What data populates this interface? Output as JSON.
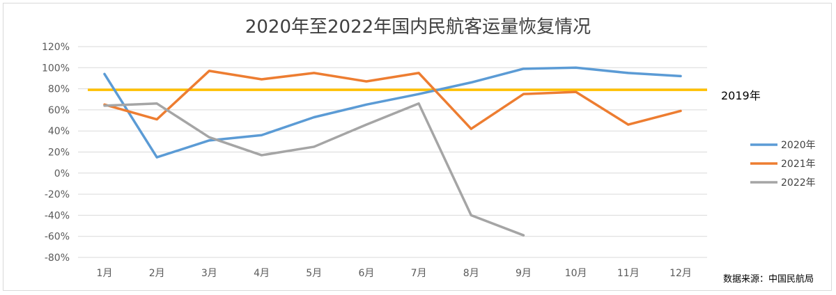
{
  "chart_data": {
    "type": "line",
    "title": "2020年至2022年国内民航客运量恢复情况",
    "categories": [
      "1月",
      "2月",
      "3月",
      "4月",
      "5月",
      "6月",
      "7月",
      "8月",
      "9月",
      "10月",
      "11月",
      "12月"
    ],
    "y_ticks": [
      "120%",
      "100%",
      "80%",
      "60%",
      "40%",
      "20%",
      "0%",
      "-20%",
      "-40%",
      "-60%",
      "-80%"
    ],
    "ylim": [
      -80,
      120
    ],
    "y_unit": "%",
    "grid": true,
    "legend_position": "right",
    "series": [
      {
        "name": "2020年",
        "color": "#5b9bd5",
        "values": [
          94,
          15,
          31,
          36,
          53,
          65,
          75,
          86,
          99,
          100,
          95,
          92
        ]
      },
      {
        "name": "2021年",
        "color": "#ed7d31",
        "values": [
          65,
          51,
          97,
          89,
          95,
          87,
          95,
          42,
          75,
          77,
          46,
          59
        ]
      },
      {
        "name": "2022年",
        "color": "#a5a5a5",
        "values": [
          64,
          66,
          34,
          17,
          25,
          46,
          66,
          -40,
          -59,
          null,
          null,
          null
        ]
      }
    ],
    "reference_line": {
      "label": "2019年",
      "value": 79,
      "color": "#ffc000"
    },
    "source_note": "数据来源：中国民航局"
  }
}
